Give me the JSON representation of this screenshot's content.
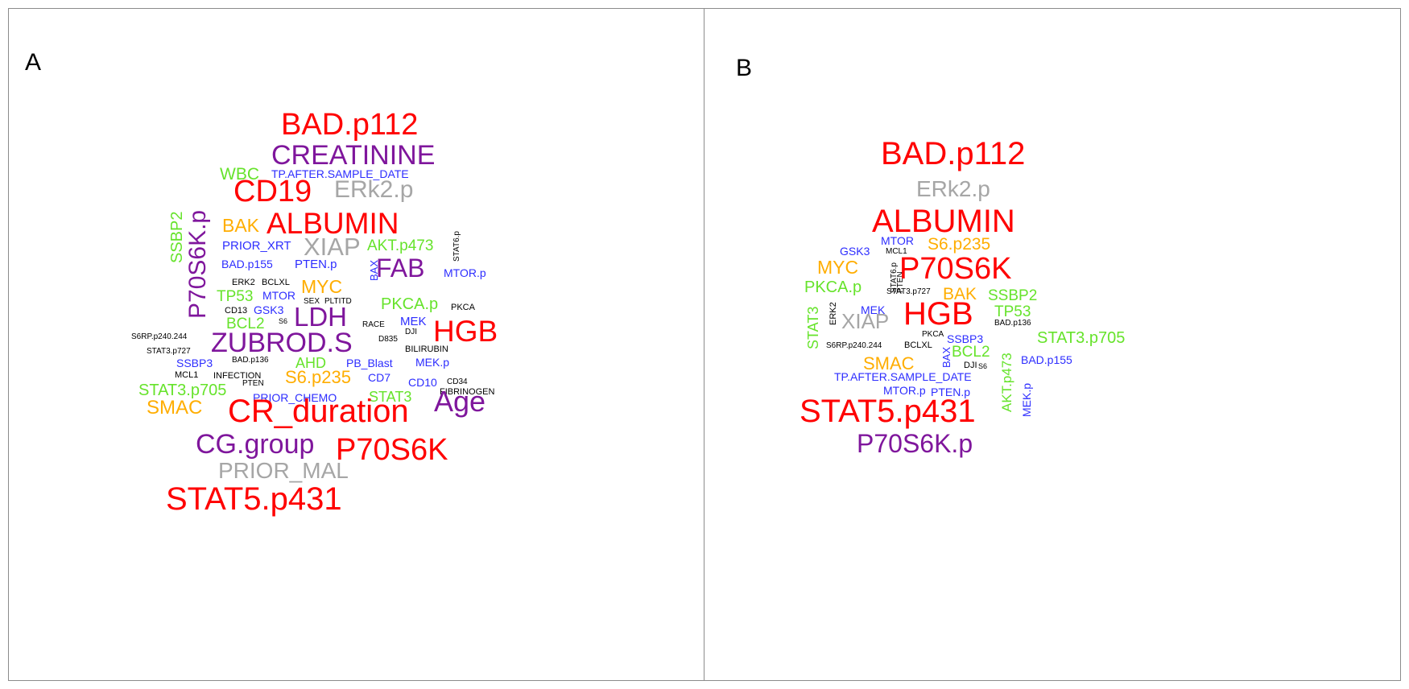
{
  "colors": {
    "red": "#ff0000",
    "purple": "#7f169c",
    "gray": "#a6a6a6",
    "orange": "#ffad00",
    "green": "#66e32b",
    "blue": "#2d2dff",
    "black": "#000000"
  },
  "panels": [
    {
      "label": "A",
      "words": [
        {
          "text": "BAD.p112",
          "color": "red"
        },
        {
          "text": "CREATININE",
          "color": "purple"
        },
        {
          "text": "WBC",
          "color": "green"
        },
        {
          "text": "TP.AFTER.SAMPLE_DATE",
          "color": "blue"
        },
        {
          "text": "CD19",
          "color": "red"
        },
        {
          "text": "ERk2.p",
          "color": "gray"
        },
        {
          "text": "P70S6K.p",
          "color": "purple"
        },
        {
          "text": "SSBP2",
          "color": "green"
        },
        {
          "text": "BAK",
          "color": "orange"
        },
        {
          "text": "ALBUMIN",
          "color": "red"
        },
        {
          "text": "PRIOR_XRT",
          "color": "blue"
        },
        {
          "text": "XIAP",
          "color": "gray"
        },
        {
          "text": "AKT.p473",
          "color": "green"
        },
        {
          "text": "STAT6.p",
          "color": "black"
        },
        {
          "text": "BAD.p155",
          "color": "blue"
        },
        {
          "text": "PTEN.p",
          "color": "blue"
        },
        {
          "text": "BAX",
          "color": "blue"
        },
        {
          "text": "FAB",
          "color": "purple"
        },
        {
          "text": "MTOR.p",
          "color": "blue"
        },
        {
          "text": "ERK2",
          "color": "black"
        },
        {
          "text": "BCLXL",
          "color": "black"
        },
        {
          "text": "MYC",
          "color": "orange"
        },
        {
          "text": "TP53",
          "color": "green"
        },
        {
          "text": "MTOR",
          "color": "blue"
        },
        {
          "text": "SEX",
          "color": "black"
        },
        {
          "text": "PLTITD",
          "color": "black"
        },
        {
          "text": "PKCA.p",
          "color": "green"
        },
        {
          "text": "CD13",
          "color": "black"
        },
        {
          "text": "GSK3",
          "color": "blue"
        },
        {
          "text": "LDH",
          "color": "purple"
        },
        {
          "text": "PKCA",
          "color": "black"
        },
        {
          "text": "BCL2",
          "color": "green"
        },
        {
          "text": "S6",
          "color": "black"
        },
        {
          "text": "RACE",
          "color": "black"
        },
        {
          "text": "MEK",
          "color": "blue"
        },
        {
          "text": "DJI",
          "color": "black"
        },
        {
          "text": "HGB",
          "color": "red"
        },
        {
          "text": "S6RP.p240.244",
          "color": "black"
        },
        {
          "text": "ZUBROD.S",
          "color": "purple"
        },
        {
          "text": "D835",
          "color": "black"
        },
        {
          "text": "STAT3.p727",
          "color": "black"
        },
        {
          "text": "BILIRUBIN",
          "color": "black"
        },
        {
          "text": "SSBP3",
          "color": "blue"
        },
        {
          "text": "BAD.p136",
          "color": "black"
        },
        {
          "text": "AHD",
          "color": "green"
        },
        {
          "text": "PB_Blast",
          "color": "blue"
        },
        {
          "text": "MEK.p",
          "color": "blue"
        },
        {
          "text": "MCL1",
          "color": "black"
        },
        {
          "text": "INFECTION",
          "color": "black"
        },
        {
          "text": "S6.p235",
          "color": "orange"
        },
        {
          "text": "CD7",
          "color": "blue"
        },
        {
          "text": "CD10",
          "color": "blue"
        },
        {
          "text": "CD34",
          "color": "black"
        },
        {
          "text": "PTEN",
          "color": "black"
        },
        {
          "text": "STAT3.p705",
          "color": "green"
        },
        {
          "text": "FIBRINOGEN",
          "color": "black"
        },
        {
          "text": "PRIOR_CHEMO",
          "color": "blue"
        },
        {
          "text": "STAT3",
          "color": "green"
        },
        {
          "text": "SMAC",
          "color": "orange"
        },
        {
          "text": "CR_duration",
          "color": "red"
        },
        {
          "text": "Age",
          "color": "purple"
        },
        {
          "text": "CG.group",
          "color": "purple"
        },
        {
          "text": "P70S6K",
          "color": "red"
        },
        {
          "text": "PRIOR_MAL",
          "color": "gray"
        },
        {
          "text": "STAT5.p431",
          "color": "red"
        }
      ]
    },
    {
      "label": "B",
      "words": [
        {
          "text": "BAD.p112",
          "color": "red"
        },
        {
          "text": "ERk2.p",
          "color": "gray"
        },
        {
          "text": "ALBUMIN",
          "color": "red"
        },
        {
          "text": "MTOR",
          "color": "blue"
        },
        {
          "text": "GSK3",
          "color": "blue"
        },
        {
          "text": "MCL1",
          "color": "black"
        },
        {
          "text": "S6.p235",
          "color": "orange"
        },
        {
          "text": "MYC",
          "color": "orange"
        },
        {
          "text": "STAT6.p",
          "color": "black"
        },
        {
          "text": "PTEN",
          "color": "black"
        },
        {
          "text": "P70S6K",
          "color": "red"
        },
        {
          "text": "PKCA.p",
          "color": "green"
        },
        {
          "text": "STAT3.p727",
          "color": "black"
        },
        {
          "text": "BAK",
          "color": "orange"
        },
        {
          "text": "SSBP2",
          "color": "green"
        },
        {
          "text": "STAT3",
          "color": "green"
        },
        {
          "text": "ERK2",
          "color": "black"
        },
        {
          "text": "MEK",
          "color": "blue"
        },
        {
          "text": "HGB",
          "color": "red"
        },
        {
          "text": "TP53",
          "color": "green"
        },
        {
          "text": "XIAP",
          "color": "gray"
        },
        {
          "text": "BAD.p136",
          "color": "black"
        },
        {
          "text": "STAT3.p705",
          "color": "green"
        },
        {
          "text": "PKCA",
          "color": "black"
        },
        {
          "text": "S6RP.p240.244",
          "color": "black"
        },
        {
          "text": "BCLXL",
          "color": "black"
        },
        {
          "text": "SSBP3",
          "color": "blue"
        },
        {
          "text": "BAX",
          "color": "blue"
        },
        {
          "text": "BCL2",
          "color": "green"
        },
        {
          "text": "AKT.p473",
          "color": "green"
        },
        {
          "text": "BAD.p155",
          "color": "blue"
        },
        {
          "text": "SMAC",
          "color": "orange"
        },
        {
          "text": "DJI",
          "color": "black"
        },
        {
          "text": "S6",
          "color": "black"
        },
        {
          "text": "TP.AFTER.SAMPLE_DATE",
          "color": "blue"
        },
        {
          "text": "MEK.p",
          "color": "blue"
        },
        {
          "text": "MTOR.p",
          "color": "blue"
        },
        {
          "text": "PTEN.p",
          "color": "blue"
        },
        {
          "text": "STAT5.p431",
          "color": "red"
        },
        {
          "text": "P70S6K.p",
          "color": "purple"
        }
      ]
    }
  ]
}
